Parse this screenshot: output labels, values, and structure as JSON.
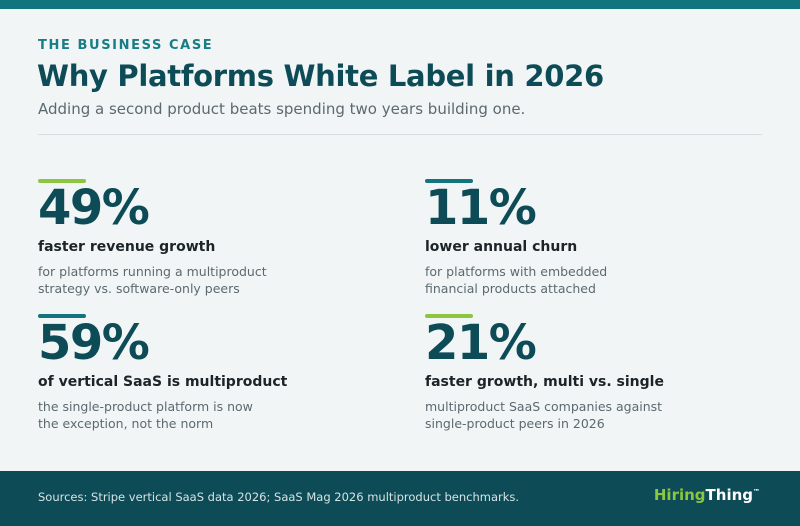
{
  "header": {
    "eyebrow": "THE BUSINESS CASE",
    "title": "Why Platforms White Label in 2026",
    "subtitle": "Adding a second product beats spending two years building one."
  },
  "stats": [
    {
      "value": "49%",
      "label": "faster revenue growth",
      "desc_line1": "for platforms running a multiproduct",
      "desc_line2": "strategy vs. software-only peers",
      "accent_color": "#8cc63f"
    },
    {
      "value": "11%",
      "label": "lower annual churn",
      "desc_line1": "for platforms with embedded",
      "desc_line2": "financial products attached",
      "accent_color": "#12757e"
    },
    {
      "value": "59%",
      "label": "of vertical SaaS is multiproduct",
      "desc_line1": "the single-product platform is now",
      "desc_line2": "the exception, not the norm",
      "accent_color": "#12757e"
    },
    {
      "value": "21%",
      "label": "faster growth, multi vs. single",
      "desc_line1": "multiproduct SaaS companies against",
      "desc_line2": "single-product peers in 2026",
      "accent_color": "#8cc63f"
    }
  ],
  "footer": {
    "sources": "Sources: Stripe vertical SaaS data 2026; SaaS Mag 2026 multiproduct benchmarks.",
    "logo_part1": "Hiring",
    "logo_part2": "Thing",
    "logo_tm": "™"
  },
  "colors": {
    "primary": "#0d4c57",
    "teal": "#12757e",
    "green": "#8cc63f",
    "background": "#f1f5f5"
  }
}
